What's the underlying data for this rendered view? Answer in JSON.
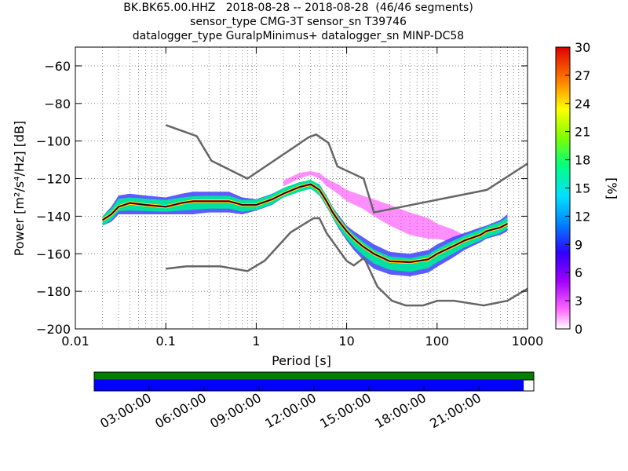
{
  "header": {
    "title_line1": "BK.BK65.00.HHZ   2018-08-28 -- 2018-08-28  (46/46 segments)",
    "title_line2": "sensor_type CMG-3T sensor_sn T39746",
    "title_line3": "datalogger_type GuralpMinimus+ datalogger_sn MINP-DC58"
  },
  "chart_data": {
    "type": "heatmap",
    "title": "BK.BK65.00.HHZ   2018-08-28 -- 2018-08-28  (46/46 segments)",
    "xlabel": "Period [s]",
    "ylabel": "Power [m²/s⁴/Hz] [dB]",
    "x_scale": "log",
    "xlim": [
      0.01,
      1000
    ],
    "ylim": [
      -200,
      -50
    ],
    "x_ticks": [
      0.01,
      0.1,
      1,
      10,
      100,
      1000
    ],
    "x_tick_labels": [
      "0.01",
      "0.1",
      "1",
      "10",
      "100",
      "1000"
    ],
    "y_ticks": [
      -200,
      -180,
      -160,
      -140,
      -120,
      -100,
      -80,
      -60
    ],
    "y_tick_labels": [
      "−200",
      "−180",
      "−160",
      "−140",
      "−120",
      "−100",
      "−80",
      "−60"
    ],
    "grid": true,
    "colorbar": {
      "label": "[%]",
      "range": [
        0,
        30
      ],
      "ticks": [
        0,
        3,
        6,
        9,
        12,
        15,
        18,
        21,
        24,
        27,
        30
      ],
      "colormap": "pqlx"
    },
    "series": [
      {
        "role": "new_high_noise_model",
        "color": "#666666",
        "x": [
          0.1,
          0.22,
          0.32,
          0.8,
          3.8,
          4.6,
          6.3,
          7.9,
          15.4,
          20,
          354.8,
          1000
        ],
        "y": [
          -91.5,
          -97.4,
          -110.5,
          -120,
          -98,
          -96.5,
          -101,
          -113.5,
          -120,
          -138,
          -126,
          -112
        ]
      },
      {
        "role": "new_low_noise_model",
        "color": "#666666",
        "x": [
          0.1,
          0.17,
          0.4,
          0.8,
          1.24,
          2.4,
          4.3,
          5,
          6,
          10,
          12,
          15.6,
          21.9,
          31.6,
          45,
          70,
          101,
          154,
          328,
          600,
          1000
        ],
        "y": [
          -168,
          -166.7,
          -166.7,
          -169.2,
          -163.7,
          -148.6,
          -141.1,
          -141.1,
          -149,
          -163.8,
          -166.2,
          -162.1,
          -177.5,
          -185,
          -187.5,
          -187.5,
          -185,
          -185,
          -187.5,
          -185,
          -178.6
        ]
      },
      {
        "role": "mode",
        "color": "#000000",
        "x": [
          0.02,
          0.025,
          0.03,
          0.04,
          0.06,
          0.1,
          0.15,
          0.2,
          0.3,
          0.5,
          0.7,
          1,
          1.5,
          2,
          3,
          4,
          5,
          6,
          7,
          8,
          10,
          12,
          15,
          20,
          30,
          50,
          80,
          100,
          150,
          200,
          300,
          350,
          500,
          600
        ],
        "y": [
          -142,
          -139,
          -135,
          -133,
          -134,
          -135,
          -133,
          -132,
          -132,
          -132,
          -134,
          -134,
          -131,
          -128,
          -124.5,
          -123,
          -126,
          -132,
          -138,
          -142,
          -148,
          -152,
          -156,
          -160,
          -164,
          -164.5,
          -163,
          -160,
          -156,
          -153,
          -150,
          -148,
          -146,
          -144
        ]
      }
    ],
    "density_band": {
      "x": [
        0.02,
        0.025,
        0.03,
        0.04,
        0.06,
        0.1,
        0.15,
        0.2,
        0.3,
        0.5,
        0.7,
        1,
        1.5,
        2,
        3,
        4,
        5,
        6,
        7,
        8,
        10,
        12,
        15,
        20,
        30,
        50,
        80,
        100,
        150,
        200,
        300,
        350,
        500,
        600
      ],
      "low": [
        -145,
        -143,
        -139,
        -139,
        -139,
        -139,
        -139,
        -139,
        -138,
        -138,
        -139,
        -137,
        -134,
        -130,
        -127,
        -125,
        -129,
        -135,
        -141,
        -146,
        -153,
        -158,
        -163,
        -168,
        -171,
        -172,
        -170,
        -167,
        -162,
        -158,
        -154,
        -152,
        -150,
        -148
      ],
      "high": [
        -140,
        -135,
        -129,
        -128,
        -129,
        -130,
        -128,
        -127,
        -127,
        -127,
        -130,
        -131,
        -128,
        -125,
        -122,
        -121,
        -123,
        -129,
        -135,
        -139,
        -145,
        -148,
        -151,
        -155,
        -159,
        -160,
        -158,
        -155,
        -151,
        -149,
        -146,
        -145,
        -142,
        -139
      ]
    },
    "outlier_band": {
      "x": [
        2,
        3,
        4,
        5,
        6,
        8,
        10,
        15,
        20,
        30,
        50,
        80,
        100,
        150,
        200
      ],
      "low": [
        -124,
        -120,
        -118,
        -120,
        -124,
        -128,
        -132,
        -136,
        -140,
        -145,
        -150,
        -152,
        -152,
        -154,
        -156
      ],
      "high": [
        -121,
        -117,
        -116,
        -117,
        -120,
        -123,
        -126,
        -129,
        -131,
        -134,
        -138,
        -141,
        -144,
        -147,
        -150
      ]
    }
  },
  "timeline": {
    "tick_labels": [
      "03:00:00",
      "06:00:00",
      "09:00:00",
      "12:00:00",
      "15:00:00",
      "18:00:00",
      "21:00:00"
    ],
    "data_color": "#008000",
    "segment_color": "#0000ff",
    "segment_fraction": 0.977
  }
}
